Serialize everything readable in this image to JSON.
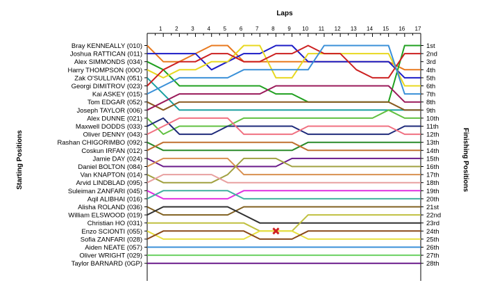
{
  "chart_data": {
    "type": "line",
    "title": "Laps",
    "ylabel_left": "Starting Positions",
    "ylabel_right": "Finishing Positions",
    "x": [
      0,
      1,
      2,
      3,
      4,
      5,
      6,
      7,
      8,
      9,
      10,
      11,
      12,
      13,
      14,
      15,
      16,
      17
    ],
    "x_tick_labels": [
      "1",
      "2",
      "3",
      "4",
      "5",
      "6",
      "7",
      "8",
      "9",
      "10",
      "11",
      "12",
      "13",
      "14",
      "15",
      "16",
      "17"
    ],
    "starting_drivers": [
      "Bray KENNEALLY (010)",
      "Joshua RATTICAN (011)",
      "Alex SIMMONDS (034)",
      "Harry THOMPSON (00O)",
      "Zak O'SULLIVAN (051)",
      "Georgi DIMITROV (023)",
      "Kai ASKEY (015)",
      "Tom EDGAR (052)",
      "Joseph TAYLOR (006)",
      "Alex DUNNE (021)",
      "Maxwell DODDS (033)",
      "Oliver DENNY (043)",
      "Rashan CHIGORIMBO (092)",
      "Coskun IRFAN (012)",
      "Jamie DAY (024)",
      "Daniel BOLTON (084)",
      "Van KNAPTON (014)",
      "Arvid LINDBLAD (095)",
      "Suleiman ZANFARI (045)",
      "Aqil ALIBHAI (016)",
      "Alisha ROLAND (036)",
      "William ELSWOOD (019)",
      "Christian HO (031)",
      "Enzo SCIONTI (055)",
      "Sofia ZANFARI (028)",
      "Aiden NEATE (057)",
      "Oliver WRIGHT (029)",
      "Taylor BARNARD (0GP)"
    ],
    "finishing_positions": [
      "1st",
      "2nd",
      "3rd",
      "4th",
      "5th",
      "6th",
      "7th",
      "8th",
      "9th",
      "10th",
      "11th",
      "12th",
      "13th",
      "14th",
      "15th",
      "16th",
      "17th",
      "18th",
      "19th",
      "20th",
      "21st",
      "22nd",
      "23rd",
      "24th",
      "25th",
      "26th",
      "27th",
      "28th"
    ],
    "series": [
      {
        "color": "#e8791e",
        "values": [
          1,
          3,
          3,
          2,
          1,
          1,
          3,
          3,
          3,
          3,
          3,
          3,
          3,
          3,
          3,
          3,
          4,
          4
        ]
      },
      {
        "color": "#1c1cc6",
        "values": [
          2,
          2,
          2,
          2,
          4,
          3,
          2,
          2,
          1,
          1,
          3,
          3,
          3,
          3,
          3,
          3,
          5,
          5
        ]
      },
      {
        "color": "#20a020",
        "values": [
          3,
          4,
          6,
          6,
          6,
          6,
          6,
          6,
          7,
          7,
          8,
          8,
          8,
          8,
          8,
          8,
          1,
          1
        ]
      },
      {
        "color": "#e8d820",
        "values": [
          4,
          5,
          4,
          4,
          3,
          3,
          1,
          1,
          5,
          5,
          2,
          2,
          2,
          2,
          2,
          2,
          6,
          6
        ]
      },
      {
        "color": "#1aa0a0",
        "values": [
          5,
          7,
          9,
          9,
          9,
          9,
          9,
          9,
          9,
          9,
          9,
          9,
          9,
          9,
          9,
          9,
          9,
          9
        ]
      },
      {
        "color": "#cc2020",
        "values": [
          6,
          4,
          3,
          3,
          2,
          2,
          3,
          3,
          2,
          2,
          1,
          2,
          2,
          4,
          5,
          5,
          2,
          2
        ]
      },
      {
        "color": "#3a90d8",
        "values": [
          7,
          6,
          5,
          5,
          5,
          5,
          4,
          4,
          4,
          4,
          4,
          1,
          1,
          1,
          1,
          1,
          7,
          7
        ]
      },
      {
        "color": "#8a5a20",
        "values": [
          8,
          9,
          8,
          8,
          8,
          8,
          8,
          8,
          8,
          8,
          8,
          8,
          8,
          8,
          8,
          8,
          9,
          9
        ]
      },
      {
        "color": "#9a1a5a",
        "values": [
          9,
          8,
          7,
          7,
          7,
          7,
          7,
          7,
          6,
          6,
          6,
          6,
          6,
          6,
          6,
          6,
          8,
          8
        ]
      },
      {
        "color": "#60c040",
        "values": [
          10,
          12,
          11,
          11,
          11,
          11,
          10,
          10,
          10,
          10,
          10,
          10,
          10,
          10,
          10,
          9,
          10,
          10
        ]
      },
      {
        "color": "#1e2a7a",
        "values": [
          11,
          10,
          12,
          12,
          12,
          11,
          11,
          11,
          11,
          11,
          12,
          12,
          12,
          12,
          12,
          12,
          11,
          11
        ]
      },
      {
        "color": "#f07080",
        "values": [
          12,
          11,
          10,
          10,
          10,
          10,
          12,
          12,
          12,
          12,
          11,
          11,
          11,
          11,
          11,
          11,
          12,
          12
        ]
      },
      {
        "color": "#2a8a2a",
        "values": [
          13,
          14,
          14,
          14,
          14,
          14,
          14,
          14,
          14,
          14,
          13,
          13,
          13,
          13,
          13,
          13,
          13,
          13
        ]
      },
      {
        "color": "#c07030",
        "values": [
          14,
          13,
          13,
          13,
          13,
          13,
          13,
          13,
          13,
          13,
          14,
          14,
          14,
          14,
          14,
          14,
          14,
          14
        ]
      },
      {
        "color": "#6a1a8a",
        "values": [
          15,
          16,
          16,
          16,
          16,
          16,
          16,
          16,
          16,
          15,
          15,
          15,
          15,
          15,
          15,
          15,
          15,
          15
        ]
      },
      {
        "color": "#d89050",
        "values": [
          16,
          15,
          15,
          15,
          15,
          15,
          17,
          17,
          17,
          17,
          17,
          17,
          17,
          17,
          17,
          17,
          17,
          17
        ]
      },
      {
        "color": "#a0a040",
        "values": [
          17,
          18,
          18,
          18,
          18,
          17,
          15,
          15,
          15,
          16,
          16,
          16,
          16,
          16,
          16,
          16,
          16,
          16
        ]
      },
      {
        "color": "#e8a0a0",
        "values": [
          18,
          17,
          17,
          17,
          17,
          18,
          18,
          18,
          18,
          18,
          18,
          18,
          18,
          18,
          18,
          18,
          18,
          18
        ]
      },
      {
        "color": "#e030e0",
        "values": [
          19,
          20,
          20,
          20,
          20,
          20,
          19,
          19,
          19,
          19,
          19,
          19,
          19,
          19,
          19,
          19,
          19,
          19
        ]
      },
      {
        "color": "#40b0a0",
        "values": [
          20,
          19,
          19,
          19,
          19,
          19,
          20,
          20,
          20,
          20,
          20,
          20,
          20,
          20,
          20,
          20,
          20,
          20
        ]
      },
      {
        "color": "#806020",
        "values": [
          21,
          22,
          22,
          22,
          22,
          22,
          21,
          21,
          21,
          21,
          21,
          21,
          21,
          21,
          21,
          21,
          21,
          21
        ]
      },
      {
        "color": "#303030",
        "values": [
          22,
          21,
          21,
          21,
          21,
          21,
          22,
          23,
          23,
          23,
          23,
          23,
          23,
          23,
          23,
          23,
          23,
          23
        ]
      },
      {
        "color": "#c0c040",
        "values": [
          23,
          23,
          23,
          23,
          23,
          23,
          23,
          24,
          24,
          24,
          22,
          22,
          22,
          22,
          22,
          22,
          22,
          22
        ]
      },
      {
        "color": "#e8e040",
        "values": [
          24,
          25,
          25,
          25,
          25,
          25,
          25,
          24,
          24,
          24,
          25,
          25,
          25,
          25,
          25,
          25,
          25,
          25
        ]
      },
      {
        "color": "#8a4a1a",
        "values": [
          25,
          24,
          24,
          24,
          24,
          24,
          24,
          25,
          25,
          25,
          24,
          24,
          24,
          24,
          24,
          24,
          24,
          24
        ]
      },
      {
        "color": "#3a90d8",
        "values": [
          26,
          26,
          26,
          26,
          26,
          26,
          26,
          26,
          26,
          26,
          26,
          26,
          26,
          26,
          26,
          26,
          26,
          26
        ]
      },
      {
        "color": "#6ad060",
        "values": [
          27,
          27,
          27,
          27,
          27,
          27,
          27,
          27,
          27,
          27,
          27,
          27,
          27,
          27,
          27,
          27,
          27,
          27
        ]
      },
      {
        "color": "#6a1a8a",
        "values": [
          28,
          28,
          28,
          28,
          28,
          28,
          28,
          28,
          28,
          28,
          28,
          28,
          28,
          28,
          28,
          28,
          28,
          28
        ]
      }
    ],
    "retirement_marker": {
      "lap": 8,
      "position": 24,
      "color": "#d02020"
    }
  }
}
